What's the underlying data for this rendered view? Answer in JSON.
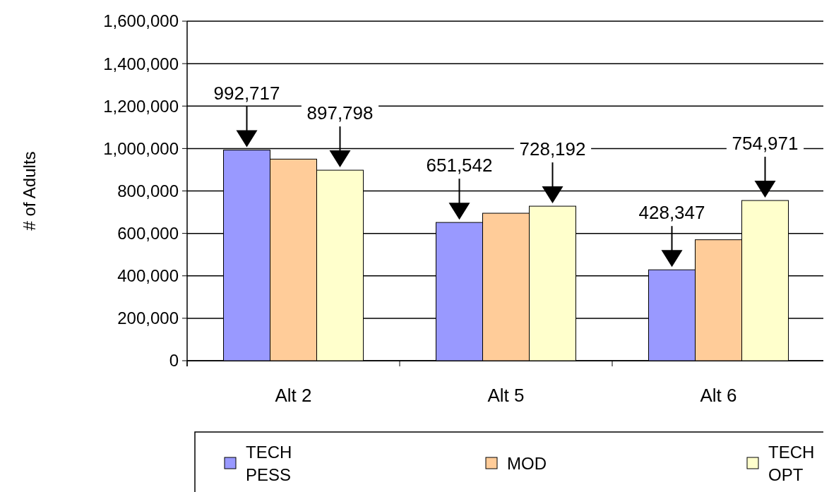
{
  "chart_data": {
    "type": "bar",
    "ylabel": "# of Adults",
    "categories": [
      "Alt 2",
      "Alt 5",
      "Alt 6"
    ],
    "series": [
      {
        "name": "TECH PESS",
        "color": "#9999ff",
        "values": [
          992717,
          651542,
          428347
        ],
        "value_labels": [
          "992,717",
          "651,542",
          "428,347"
        ]
      },
      {
        "name": "MOD",
        "color": "#ffcc99",
        "values": [
          950000,
          695000,
          570000
        ],
        "value_labels": [
          null,
          null,
          null
        ]
      },
      {
        "name": "TECH OPT",
        "color": "#ffffcc",
        "values": [
          897798,
          728192,
          754971
        ],
        "value_labels": [
          "897,798",
          "728,192",
          "754,971"
        ]
      }
    ],
    "ylim": [
      0,
      1600000
    ],
    "yticks": [
      {
        "value": 0,
        "label": "0"
      },
      {
        "value": 200000,
        "label": "200,000"
      },
      {
        "value": 400000,
        "label": "400,000"
      },
      {
        "value": 600000,
        "label": "600,000"
      },
      {
        "value": 800000,
        "label": "800,000"
      },
      {
        "value": 1000000,
        "label": "1,000,000"
      },
      {
        "value": 1200000,
        "label": "1,200,000"
      },
      {
        "value": 1400000,
        "label": "1,400,000"
      },
      {
        "value": 1600000,
        "label": "1,600,000"
      }
    ],
    "grid": "y",
    "legend": "bottom"
  }
}
